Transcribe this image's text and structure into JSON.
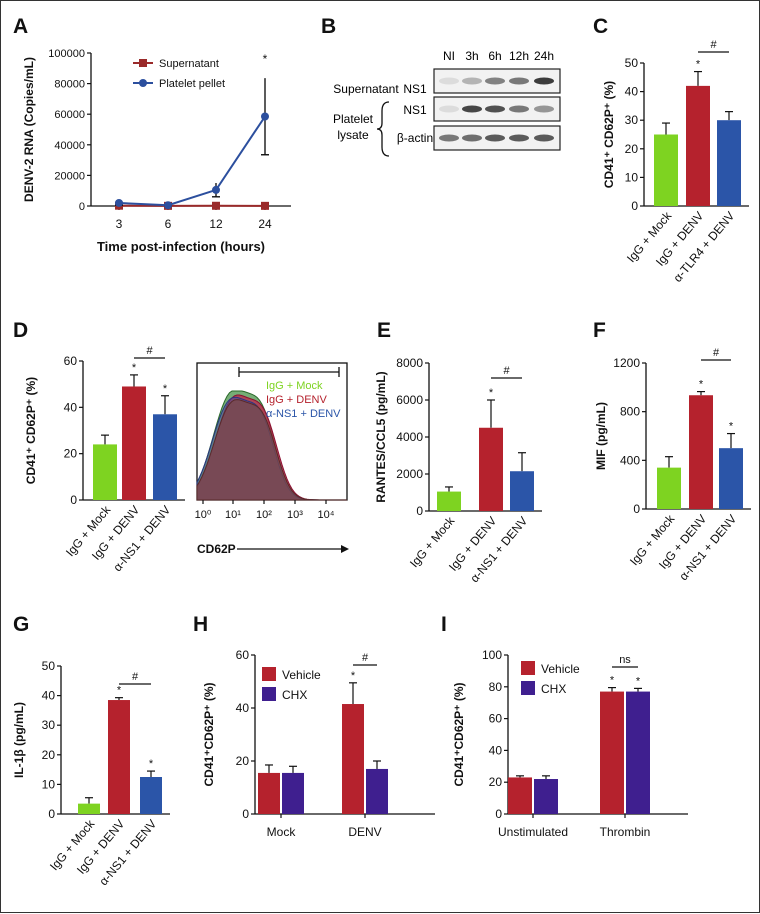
{
  "panel_letters": [
    "A",
    "B",
    "C",
    "D",
    "E",
    "F",
    "G",
    "H",
    "I"
  ],
  "colors": {
    "green": "#7ed321",
    "red": "#b5222d",
    "blue": "#2b55a8",
    "purple": "#3f1f8f",
    "line_red": "#9a2a2a",
    "line_blue": "#2c4f9e"
  },
  "western_blot": {
    "lanes": [
      "NI",
      "3h",
      "6h",
      "12h",
      "24h"
    ],
    "row_labels": [
      "NS1",
      "NS1",
      "β-actin"
    ],
    "group_supernatant": "Supernatant",
    "group_platelet_1": "Platelet",
    "group_platelet_2": "lysate",
    "band_intensity": {
      "supernatant_ns1": [
        0.05,
        0.25,
        0.5,
        0.55,
        0.85
      ],
      "lysate_ns1": [
        0.05,
        0.8,
        0.75,
        0.55,
        0.4
      ],
      "beta_actin": [
        0.55,
        0.6,
        0.7,
        0.7,
        0.7
      ]
    }
  },
  "chart_data": [
    {
      "panel": "A",
      "type": "line",
      "ylabel": "DENV-2 RNA (Copies/mL)",
      "xlabel": "Time post-infection (hours)",
      "x": [
        "3",
        "6",
        "12",
        "24"
      ],
      "ylim": [
        0,
        100000
      ],
      "yticks": [
        "0",
        "20000",
        "40000",
        "60000",
        "80000",
        "100000"
      ],
      "series": [
        {
          "name": "Supernatant",
          "color": "#9a2a2a",
          "values": [
            200,
            100,
            150,
            100
          ],
          "errors": [
            100,
            50,
            80,
            50
          ]
        },
        {
          "name": "Platelet pellet",
          "color": "#2c4f9e",
          "values": [
            2000,
            500,
            10500,
            58500
          ],
          "errors": [
            1500,
            400,
            4500,
            25000
          ]
        }
      ],
      "annotations": [
        "*"
      ]
    },
    {
      "panel": "C",
      "type": "bar",
      "ylabel": "CD41⁺ CD62P⁺ (%)",
      "categories": [
        "IgG + Mock",
        "IgG + DENV",
        "α-TLR4 + DENV"
      ],
      "values": [
        25,
        42,
        30
      ],
      "errors": [
        4,
        5,
        3
      ],
      "ylim": [
        0,
        50
      ],
      "yticks": [
        "0",
        "10",
        "20",
        "30",
        "40",
        "50"
      ],
      "stars": [
        "",
        "*",
        ""
      ],
      "hash": "#"
    },
    {
      "panel": "D",
      "type": "bar",
      "ylabel": "CD41⁺ CD62P⁺ (%)",
      "categories": [
        "IgG + Mock",
        "IgG + DENV",
        "α-NS1 + DENV"
      ],
      "values": [
        24,
        49,
        37
      ],
      "errors": [
        4,
        5,
        8
      ],
      "ylim": [
        0,
        60
      ],
      "yticks": [
        "0",
        "20",
        "40",
        "60"
      ],
      "stars": [
        "",
        "*",
        "*"
      ],
      "hash": "#"
    },
    {
      "panel": "D-hist",
      "type": "area",
      "xlabel": "CD62P",
      "xticks": [
        "10⁰",
        "10¹",
        "10²",
        "10³",
        "10⁴"
      ],
      "legend": [
        "IgG + Mock",
        "IgG + DENV",
        "α-NS1 + DENV"
      ]
    },
    {
      "panel": "E",
      "type": "bar",
      "ylabel": "RANTES/CCL5 (pg/mL)",
      "categories": [
        "IgG + Mock",
        "IgG + DENV",
        "α-NS1 + DENV"
      ],
      "values": [
        1050,
        4500,
        2150
      ],
      "errors": [
        250,
        1500,
        1000
      ],
      "ylim": [
        0,
        8000
      ],
      "yticks": [
        "0",
        "2000",
        "4000",
        "6000",
        "8000"
      ],
      "stars": [
        "",
        "*",
        ""
      ],
      "hash": "#"
    },
    {
      "panel": "F",
      "type": "bar",
      "ylabel": "MIF (pg/mL)",
      "categories": [
        "IgG + Mock",
        "IgG + DENV",
        "α-NS1 + DENV"
      ],
      "values": [
        340,
        935,
        500
      ],
      "errors": [
        90,
        30,
        120
      ],
      "ylim": [
        0,
        1200
      ],
      "yticks": [
        "0",
        "400",
        "800",
        "1200"
      ],
      "stars": [
        "",
        "*",
        "*"
      ],
      "hash": "#"
    },
    {
      "panel": "G",
      "type": "bar",
      "ylabel": "IL-1β (pg/mL)",
      "categories": [
        "IgG + Mock",
        "IgG + DENV",
        "α-NS1 + DENV"
      ],
      "values": [
        3.5,
        38.5,
        12.5
      ],
      "errors": [
        2,
        0.8,
        2
      ],
      "ylim": [
        0,
        50
      ],
      "yticks": [
        "0",
        "10",
        "20",
        "30",
        "40",
        "50"
      ],
      "stars": [
        "",
        "*",
        "*"
      ],
      "hash": "#"
    },
    {
      "panel": "H",
      "type": "bar",
      "ylabel": "CD41⁺CD62P⁺ (%)",
      "categories": [
        "Mock",
        "DENV"
      ],
      "series": [
        {
          "name": "Vehicle",
          "values": [
            15.5,
            41.5
          ],
          "errors": [
            3,
            8
          ]
        },
        {
          "name": "CHX",
          "values": [
            15.5,
            17
          ],
          "errors": [
            2.5,
            3
          ]
        }
      ],
      "ylim": [
        0,
        60
      ],
      "yticks": [
        "0",
        "20",
        "40",
        "60"
      ],
      "stars": [
        "",
        [
          "*",
          ""
        ]
      ],
      "sig_label": "#"
    },
    {
      "panel": "I",
      "type": "bar",
      "ylabel": "CD41⁺CD62P⁺ (%)",
      "categories": [
        "Unstimulated",
        "Thrombin"
      ],
      "series": [
        {
          "name": "Vehicle",
          "values": [
            23,
            77
          ],
          "errors": [
            1,
            2.5
          ]
        },
        {
          "name": "CHX",
          "values": [
            22,
            77
          ],
          "errors": [
            2,
            2
          ]
        }
      ],
      "ylim": [
        0,
        100
      ],
      "yticks": [
        "0",
        "20",
        "40",
        "60",
        "80",
        "100"
      ],
      "stars": [
        "",
        [
          "*",
          "*"
        ]
      ],
      "sig_label": "ns"
    }
  ]
}
